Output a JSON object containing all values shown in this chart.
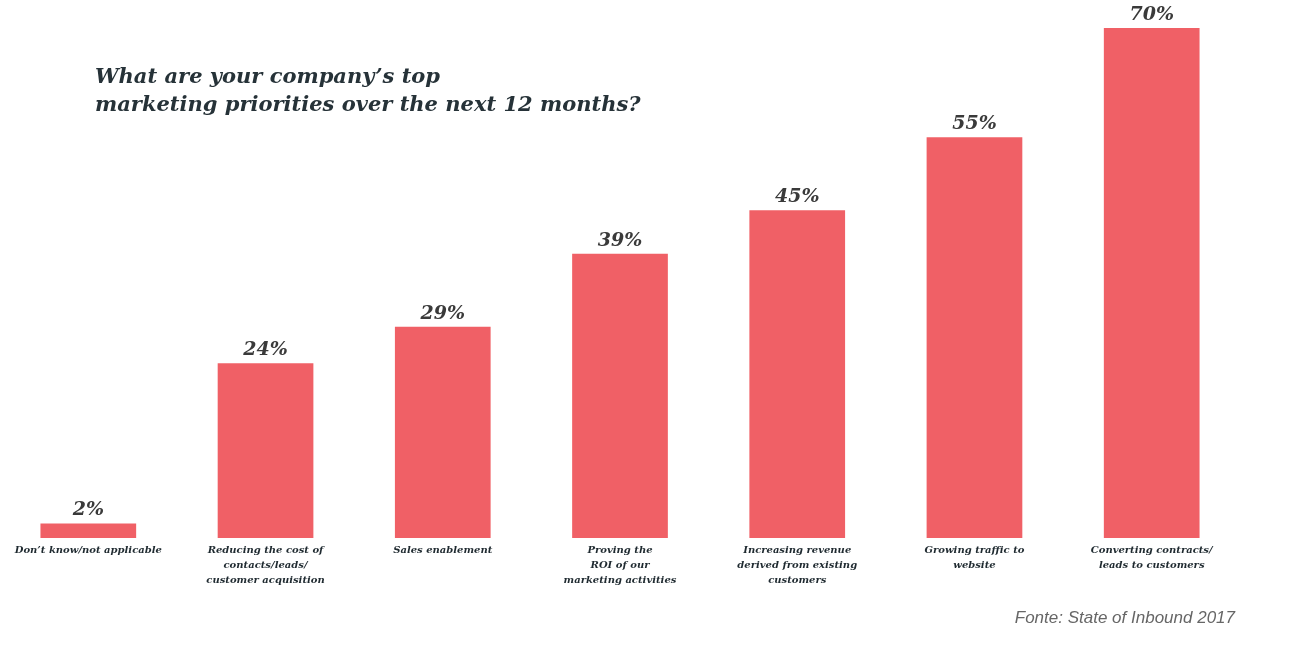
{
  "chart_data": {
    "type": "bar",
    "title": [
      "What are your company’s top",
      "marketing priorities over the next 12 months?"
    ],
    "categories": [
      "Don’t know/not applicable",
      "Reducing the cost of\ncontacts/leads/\ncustomer acquisition",
      "Sales enablement",
      "Proving the\nROI of our\nmarketing activities",
      "Increasing revenue\nderived from existing\ncustomers",
      "Growing traffic to\nwebsite",
      "Converting contracts/\nleads to customers"
    ],
    "values": [
      2,
      24,
      29,
      39,
      45,
      55,
      70
    ],
    "color": "#f06066",
    "data_labels": true,
    "value_labels": [
      "2%",
      "24%",
      "29%",
      "39%",
      "45%",
      "55%",
      "70%"
    ],
    "annotations": [
      "Fonte: State of Inbound 2017"
    ],
    "grid": false
  }
}
